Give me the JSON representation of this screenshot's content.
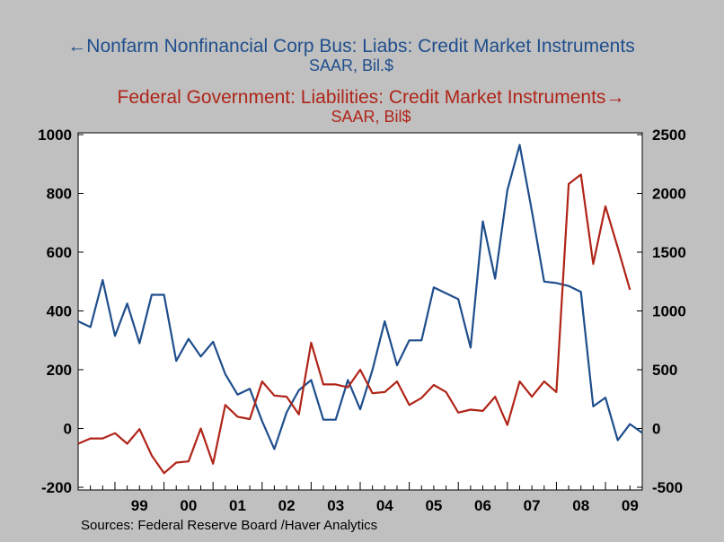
{
  "chart_data": {
    "type": "line",
    "title_left": "Nonfarm Nonfinancial Corp Bus: Liabs: Credit Market Instruments",
    "unit_left": "SAAR, Bil.$",
    "title_right": "Federal Government: Liabilities: Credit Market Instruments",
    "unit_right": "SAAR, Bil$",
    "source": "Sources:  Federal Reserve Board /Haver Analytics",
    "x_ticks": [
      "99",
      "00",
      "01",
      "02",
      "03",
      "04",
      "05",
      "06",
      "07",
      "08",
      "09"
    ],
    "y_left": {
      "ticks": [
        "1000",
        "800",
        "600",
        "400",
        "200",
        "0",
        "-200"
      ],
      "ylim": [
        -200,
        1000
      ]
    },
    "y_right": {
      "ticks": [
        "2500",
        "2000",
        "1500",
        "1000",
        "500",
        "0",
        "-500"
      ],
      "ylim": [
        -500,
        2500
      ]
    },
    "x_start_year": 1998.25,
    "x_end_year": 2009.75,
    "series": [
      {
        "name": "Nonfarm Nonfinancial Corp Bus: Liabs: Credit Market Instruments",
        "axis": "left",
        "color": "#1f4e8c",
        "start": 1998.25,
        "step": 0.25,
        "values": [
          365,
          345,
          505,
          315,
          425,
          290,
          455,
          455,
          230,
          305,
          245,
          295,
          185,
          115,
          135,
          25,
          -70,
          55,
          130,
          165,
          30,
          30,
          165,
          65,
          200,
          365,
          215,
          300,
          300,
          480,
          460,
          440,
          275,
          705,
          510,
          810,
          965,
          740,
          500,
          495,
          485,
          465,
          75,
          105,
          -40,
          15,
          -15
        ]
      },
      {
        "name": "Federal Government: Liabilities: Credit Market Instruments",
        "axis": "right",
        "color": "#b02418",
        "start": 1998.25,
        "step": 0.25,
        "values": [
          -130,
          -85,
          -85,
          -40,
          -130,
          -5,
          -230,
          -380,
          -290,
          -280,
          0,
          -300,
          200,
          100,
          80,
          400,
          280,
          270,
          120,
          730,
          375,
          375,
          350,
          500,
          300,
          310,
          400,
          200,
          260,
          370,
          310,
          135,
          160,
          150,
          270,
          30,
          400,
          270,
          400,
          310,
          2080,
          2160,
          1400,
          1890,
          1540,
          1180
        ]
      }
    ]
  }
}
